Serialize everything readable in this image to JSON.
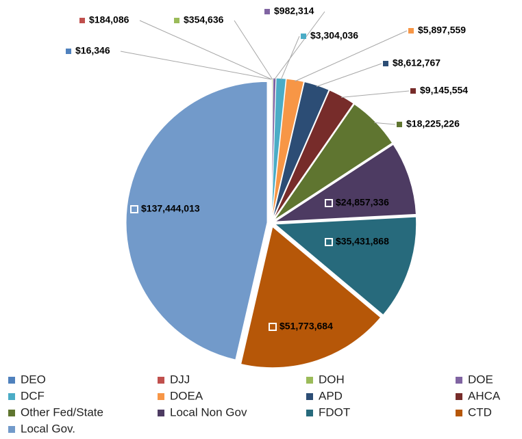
{
  "chart_data": {
    "type": "pie",
    "categories": [
      "DEO",
      "DJJ",
      "DOH",
      "DOE",
      "DCF",
      "DOEA",
      "APD",
      "AHCA",
      "Other Fed/State",
      "Local Non Gov",
      "FDOT",
      "CTD",
      "Local Gov."
    ],
    "values": [
      16346,
      184086,
      354636,
      982314,
      3304036,
      5897559,
      8612767,
      9145554,
      18225226,
      24857336,
      35431868,
      51773684,
      137444013
    ],
    "value_labels": [
      "$16,346",
      "$184,086",
      "$354,636",
      "$982,314",
      "$3,304,036",
      "$5,897,559",
      "$8,612,767",
      "$9,145,554",
      "$18,225,226",
      "$24,857,336",
      "$35,431,868",
      "$51,773,684",
      "$137,444,013"
    ],
    "colors": [
      "#4f81bd",
      "#c0504d",
      "#9bbb59",
      "#8064a2",
      "#4bacc6",
      "#f79646",
      "#2c4d75",
      "#772c2a",
      "#5f7530",
      "#4d3b62",
      "#276a7c",
      "#b65708",
      "#729aca"
    ],
    "legend": "bottom"
  }
}
